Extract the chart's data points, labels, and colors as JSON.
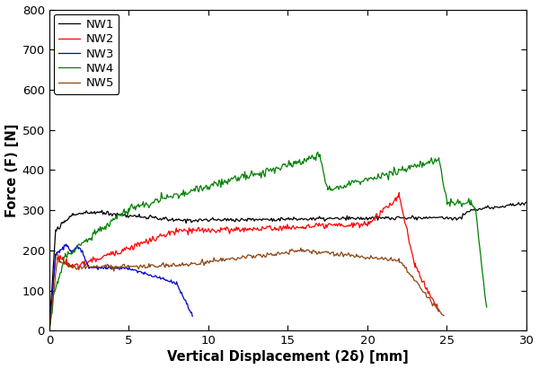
{
  "title": "",
  "xlabel": "Vertical Displacement (2δ) [mm]",
  "ylabel": "Force (F) [N]",
  "xlim": [
    0,
    30
  ],
  "ylim": [
    0,
    800
  ],
  "xticks": [
    0,
    5,
    10,
    15,
    20,
    25,
    30
  ],
  "yticks": [
    0,
    100,
    200,
    300,
    400,
    500,
    600,
    700,
    800
  ],
  "legend_labels": [
    "NW1",
    "NW2",
    "NW3",
    "NW4",
    "NW5"
  ],
  "colors": {
    "NW1": "#000000",
    "NW2": "#ff0000",
    "NW3": "#0000cd",
    "NW4": "#008000",
    "NW5": "#8b4513"
  },
  "background_color": "#ffffff",
  "linewidth": 0.9
}
